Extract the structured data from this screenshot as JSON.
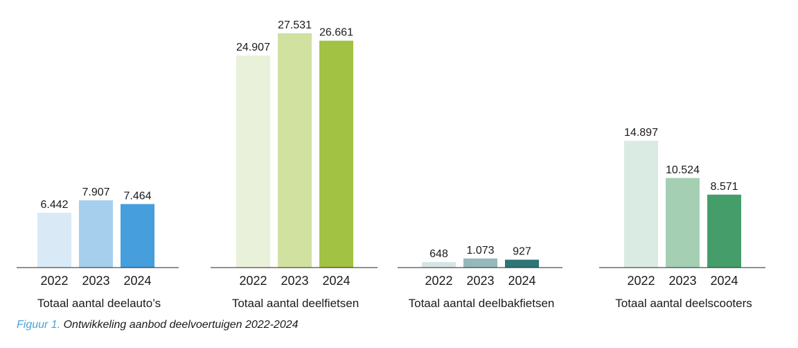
{
  "caption": {
    "prefix": "Figuur 1.",
    "text": "Ontwikkeling aanbod deelvoertuigen 2022-2024"
  },
  "chart_data": [
    {
      "type": "bar",
      "title": "Totaal aantal deelauto’s",
      "categories": [
        "2022",
        "2023",
        "2024"
      ],
      "values": [
        6442,
        7907,
        7464
      ],
      "labels": [
        "6.442",
        "7.907",
        "7.464"
      ],
      "colors": [
        "#d9e9f6",
        "#a6cfee",
        "#479edc"
      ]
    },
    {
      "type": "bar",
      "title": "Totaal aantal deelfietsen",
      "categories": [
        "2022",
        "2023",
        "2024"
      ],
      "values": [
        24907,
        27531,
        26661
      ],
      "labels": [
        "24.907",
        "27.531",
        "26.661"
      ],
      "colors": [
        "#eaf1da",
        "#d0e1a0",
        "#a2c243"
      ]
    },
    {
      "type": "bar",
      "title": "Totaal aantal deelbakfietsen",
      "categories": [
        "2022",
        "2023",
        "2024"
      ],
      "values": [
        648,
        1073,
        927
      ],
      "labels": [
        "648",
        "1.073",
        "927"
      ],
      "colors": [
        "#d6e4e5",
        "#97b8bb",
        "#2f7476"
      ]
    },
    {
      "type": "bar",
      "title": "Totaal aantal deelscooters",
      "categories": [
        "2022",
        "2023",
        "2024"
      ],
      "values": [
        14897,
        10524,
        8571
      ],
      "labels": [
        "14.897",
        "10.524",
        "8.571"
      ],
      "colors": [
        "#d9ebe2",
        "#a4cfb3",
        "#459d69"
      ]
    }
  ]
}
